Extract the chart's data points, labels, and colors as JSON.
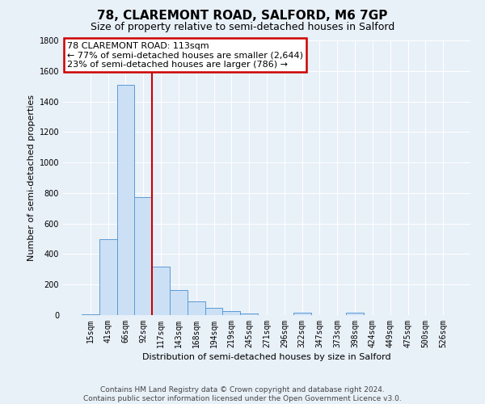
{
  "title1": "78, CLAREMONT ROAD, SALFORD, M6 7GP",
  "title2": "Size of property relative to semi-detached houses in Salford",
  "xlabel": "Distribution of semi-detached houses by size in Salford",
  "ylabel": "Number of semi-detached properties",
  "categories": [
    "15sqm",
    "41sqm",
    "66sqm",
    "92sqm",
    "117sqm",
    "143sqm",
    "168sqm",
    "194sqm",
    "219sqm",
    "245sqm",
    "271sqm",
    "296sqm",
    "322sqm",
    "347sqm",
    "373sqm",
    "398sqm",
    "424sqm",
    "449sqm",
    "475sqm",
    "500sqm",
    "526sqm"
  ],
  "values": [
    5,
    500,
    1510,
    775,
    320,
    165,
    90,
    50,
    28,
    12,
    0,
    0,
    14,
    0,
    0,
    14,
    0,
    0,
    0,
    0,
    0
  ],
  "bar_color": "#cce0f5",
  "bar_edge_color": "#5b9bd5",
  "vline_color": "#cc0000",
  "vline_x_index": 4,
  "annotation_line1": "78 CLAREMONT ROAD: 113sqm",
  "annotation_line2": "← 77% of semi-detached houses are smaller (2,644)",
  "annotation_line3": "23% of semi-detached houses are larger (786) →",
  "annotation_box_color": "#cc0000",
  "annotation_box_fill": "#ffffff",
  "ylim": [
    0,
    1800
  ],
  "yticks": [
    0,
    200,
    400,
    600,
    800,
    1000,
    1200,
    1400,
    1600,
    1800
  ],
  "footer_text": "Contains HM Land Registry data © Crown copyright and database right 2024.\nContains public sector information licensed under the Open Government Licence v3.0.",
  "bg_color": "#e8f0f8",
  "plot_bg_color": "#e8f0f8",
  "title1_fontsize": 11,
  "title2_fontsize": 9,
  "xlabel_fontsize": 8,
  "ylabel_fontsize": 8,
  "tick_fontsize": 7,
  "annotation_fontsize": 8,
  "footer_fontsize": 6.5
}
